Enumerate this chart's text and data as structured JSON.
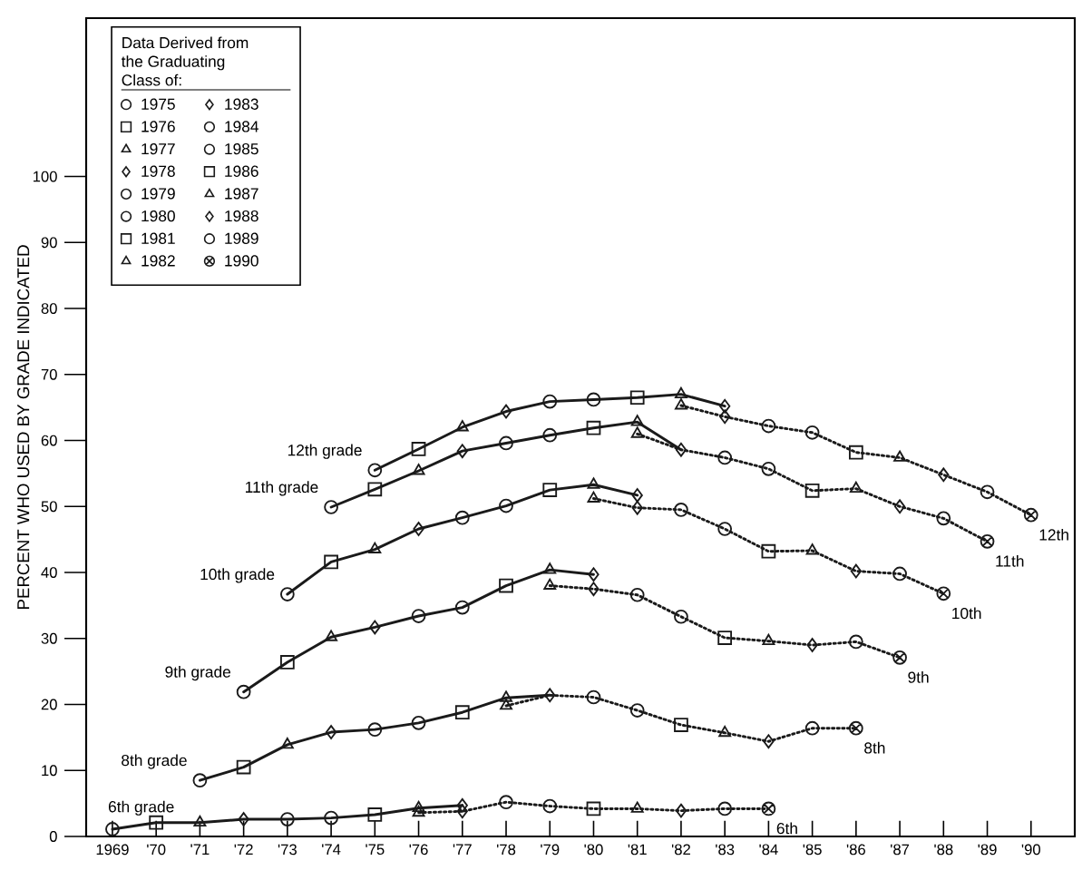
{
  "chart_data": {
    "type": "line",
    "ylabel": "PERCENT WHO USED BY GRADE INDICATED",
    "legend_title": "Data Derived from the Graduating Class of:",
    "legend": "top left",
    "xlim": [
      1968.4,
      1991
    ],
    "ylim": [
      0,
      124
    ],
    "xticks": [
      1969,
      {
        "value": 1970,
        "label": "'70"
      },
      {
        "value": 1971,
        "label": "'71"
      },
      {
        "value": 1972,
        "label": "'72"
      },
      {
        "value": 1973,
        "label": "'73"
      },
      {
        "value": 1974,
        "label": "'74"
      },
      {
        "value": 1975,
        "label": "'75"
      },
      {
        "value": 1976,
        "label": "'76"
      },
      {
        "value": 1977,
        "label": "'77"
      },
      {
        "value": 1978,
        "label": "'78"
      },
      {
        "value": 1979,
        "label": "'79"
      },
      {
        "value": 1980,
        "label": "'80"
      },
      {
        "value": 1981,
        "label": "'81"
      },
      {
        "value": 1982,
        "label": "'82"
      },
      {
        "value": 1983,
        "label": "'83"
      },
      {
        "value": 1984,
        "label": "'84"
      },
      {
        "value": 1985,
        "label": "'85"
      },
      {
        "value": 1986,
        "label": "'86"
      },
      {
        "value": 1987,
        "label": "'87"
      },
      {
        "value": 1988,
        "label": "'88"
      },
      {
        "value": 1989,
        "label": "'89"
      },
      {
        "value": 1990,
        "label": "'90"
      }
    ],
    "yticks": [
      0,
      10,
      20,
      30,
      40,
      50,
      60,
      70,
      80,
      90,
      100
    ],
    "annotations": [
      {
        "text": "12th grade",
        "x": 1975,
        "y": 55.5
      },
      {
        "text": "11th grade",
        "x": 1974,
        "y": 49.9
      },
      {
        "text": "10th grade",
        "x": 1973,
        "y": 36.7
      },
      {
        "text": "9th grade",
        "x": 1972,
        "y": 21.9
      },
      {
        "text": "8th grade",
        "x": 1971,
        "y": 8.5
      },
      {
        "text": "6th grade",
        "x": 1969,
        "y": 1.1
      },
      {
        "text": "12th",
        "x": 1990,
        "y": 48.7
      },
      {
        "text": "11th",
        "x": 1989,
        "y": 44.7
      },
      {
        "text": "10th",
        "x": 1988,
        "y": 36.8
      },
      {
        "text": "9th",
        "x": 1987,
        "y": 27.1
      },
      {
        "text": "8th",
        "x": 1986,
        "y": 16.4
      },
      {
        "text": "6th",
        "x": 1984,
        "y": 4.2
      }
    ],
    "series": [
      {
        "color": "#1a1a1a",
        "line_style": "solid",
        "marker": "none",
        "x": [
          1969,
          1970,
          1971,
          1972,
          1973,
          1974,
          1975,
          1976,
          1977
        ],
        "values": [
          1.1,
          2.1,
          2.1,
          2.6,
          2.6,
          2.8,
          3.3,
          4.3,
          4.7
        ]
      },
      {
        "color": "#1a1a1a",
        "line_style": "dotted",
        "marker": "none",
        "x": [
          1976,
          1977,
          1978,
          1979,
          1980,
          1981,
          1982,
          1983,
          1984
        ],
        "values": [
          3.6,
          3.8,
          5.2,
          4.6,
          4.2,
          4.2,
          3.9,
          4.2,
          4.2
        ]
      },
      {
        "color": "#1a1a1a",
        "line_style": "solid",
        "marker": "none",
        "x": [
          1971,
          1972,
          1973,
          1974,
          1975,
          1976,
          1977,
          1978,
          1979
        ],
        "values": [
          8.5,
          10.5,
          13.9,
          15.8,
          16.2,
          17.2,
          18.8,
          21.0,
          21.4
        ]
      },
      {
        "color": "#1a1a1a",
        "line_style": "dotted",
        "marker": "none",
        "x": [
          1978,
          1979,
          1980,
          1981,
          1982,
          1983,
          1984,
          1985,
          1986
        ],
        "values": [
          19.8,
          21.4,
          21.1,
          19.1,
          16.9,
          15.7,
          14.4,
          16.4,
          16.4
        ]
      },
      {
        "color": "#1a1a1a",
        "line_style": "solid",
        "marker": "none",
        "x": [
          1972,
          1973,
          1974,
          1975,
          1976,
          1977,
          1978,
          1979,
          1980
        ],
        "values": [
          21.9,
          26.4,
          30.2,
          31.7,
          33.4,
          34.7,
          38.0,
          40.4,
          39.7
        ]
      },
      {
        "color": "#1a1a1a",
        "line_style": "dotted",
        "marker": "none",
        "x": [
          1979,
          1980,
          1981,
          1982,
          1983,
          1984,
          1985,
          1986,
          1987
        ],
        "values": [
          38.0,
          37.5,
          36.6,
          33.3,
          30.1,
          29.6,
          29.0,
          29.5,
          27.1
        ]
      },
      {
        "color": "#1a1a1a",
        "line_style": "solid",
        "marker": "none",
        "x": [
          1973,
          1974,
          1975,
          1976,
          1977,
          1978,
          1979,
          1980,
          1981
        ],
        "values": [
          36.7,
          41.6,
          43.5,
          46.6,
          48.3,
          50.1,
          52.5,
          53.3,
          51.7
        ]
      },
      {
        "color": "#1a1a1a",
        "line_style": "dotted",
        "marker": "none",
        "x": [
          1980,
          1981,
          1982,
          1983,
          1984,
          1985,
          1986,
          1987,
          1988
        ],
        "values": [
          51.2,
          49.8,
          49.5,
          46.6,
          43.2,
          43.3,
          40.2,
          39.8,
          36.8
        ]
      },
      {
        "color": "#1a1a1a",
        "line_style": "solid",
        "marker": "none",
        "x": [
          1974,
          1975,
          1976,
          1977,
          1978,
          1979,
          1980,
          1981,
          1982
        ],
        "values": [
          49.9,
          52.6,
          55.4,
          58.4,
          59.6,
          60.8,
          61.9,
          62.8,
          58.6
        ]
      },
      {
        "color": "#1a1a1a",
        "line_style": "dotted",
        "marker": "none",
        "x": [
          1981,
          1982,
          1983,
          1984,
          1985,
          1986,
          1987,
          1988,
          1989
        ],
        "values": [
          61.0,
          58.6,
          57.4,
          55.7,
          52.4,
          52.7,
          50.0,
          48.2,
          44.7
        ]
      },
      {
        "color": "#1a1a1a",
        "line_style": "solid",
        "marker": "none",
        "x": [
          1975,
          1976,
          1977,
          1978,
          1979,
          1980,
          1981,
          1982,
          1983
        ],
        "values": [
          55.5,
          58.7,
          62.0,
          64.4,
          65.9,
          66.2,
          66.5,
          67.0,
          65.2
        ]
      },
      {
        "color": "#1a1a1a",
        "line_style": "dotted",
        "marker": "none",
        "x": [
          1982,
          1983,
          1984,
          1985,
          1986,
          1987,
          1988,
          1989,
          1990
        ],
        "values": [
          65.3,
          63.6,
          62.2,
          61.2,
          58.2,
          57.4,
          54.8,
          52.2,
          48.7
        ]
      },
      {
        "type": "scatter",
        "name": "1975",
        "color": "#1a1a1a",
        "marker": "circle",
        "x": [
          1969,
          1971,
          1972,
          1973,
          1974,
          1975
        ],
        "values": [
          1.1,
          8.5,
          21.9,
          36.7,
          49.9,
          55.5
        ]
      },
      {
        "type": "scatter",
        "name": "1976",
        "color": "#1a1a1a",
        "marker": "square",
        "x": [
          1970,
          1972,
          1973,
          1974,
          1975,
          1976
        ],
        "values": [
          2.1,
          10.5,
          26.4,
          41.6,
          52.6,
          58.7
        ]
      },
      {
        "type": "scatter",
        "name": "1977",
        "color": "#1a1a1a",
        "marker": "triangle",
        "x": [
          1971,
          1973,
          1974,
          1975,
          1976,
          1977
        ],
        "values": [
          2.1,
          13.9,
          30.2,
          43.5,
          55.4,
          62.0
        ]
      },
      {
        "type": "scatter",
        "name": "1978",
        "color": "#1a1a1a",
        "marker": "diamond",
        "x": [
          1972,
          1974,
          1975,
          1976,
          1977,
          1978
        ],
        "values": [
          2.6,
          15.8,
          31.7,
          46.6,
          58.4,
          64.4
        ]
      },
      {
        "type": "scatter",
        "name": "1979",
        "color": "#1a1a1a",
        "marker": "circle",
        "x": [
          1973,
          1975,
          1976,
          1977,
          1978,
          1979
        ],
        "values": [
          2.6,
          16.2,
          33.4,
          48.3,
          59.6,
          65.9
        ]
      },
      {
        "type": "scatter",
        "name": "1980",
        "color": "#1a1a1a",
        "marker": "circle",
        "x": [
          1974,
          1976,
          1977,
          1978,
          1979,
          1980
        ],
        "values": [
          2.8,
          17.2,
          34.7,
          50.1,
          60.8,
          66.2
        ]
      },
      {
        "type": "scatter",
        "name": "1981",
        "color": "#1a1a1a",
        "marker": "square",
        "x": [
          1975,
          1977,
          1978,
          1979,
          1980,
          1981
        ],
        "values": [
          3.3,
          18.8,
          38.0,
          52.5,
          61.9,
          66.5
        ]
      },
      {
        "type": "scatter",
        "name": "1982",
        "color": "#1a1a1a",
        "marker": "triangle",
        "x": [
          1976,
          1976,
          1978,
          1978,
          1979,
          1979,
          1980,
          1980,
          1981,
          1981,
          1982,
          1982
        ],
        "values": [
          4.3,
          3.6,
          21.0,
          19.8,
          40.4,
          38.0,
          53.3,
          51.2,
          62.8,
          61.0,
          67.0,
          65.3
        ]
      },
      {
        "type": "scatter",
        "name": "1983",
        "color": "#1a1a1a",
        "marker": "diamond",
        "x": [
          1977,
          1977,
          1979,
          1980,
          1980,
          1981,
          1981,
          1982,
          1983,
          1983
        ],
        "values": [
          4.7,
          3.8,
          21.4,
          39.7,
          37.5,
          51.7,
          49.8,
          58.6,
          65.2,
          63.6
        ]
      },
      {
        "type": "scatter",
        "name": "1984",
        "color": "#1a1a1a",
        "marker": "circle",
        "x": [
          1978,
          1980,
          1981,
          1982,
          1983,
          1984
        ],
        "values": [
          5.2,
          21.1,
          36.6,
          49.5,
          57.4,
          62.2
        ]
      },
      {
        "type": "scatter",
        "name": "1985",
        "color": "#1a1a1a",
        "marker": "circle",
        "x": [
          1979,
          1981,
          1982,
          1983,
          1984,
          1985
        ],
        "values": [
          4.6,
          19.1,
          33.3,
          46.6,
          55.7,
          61.2
        ]
      },
      {
        "type": "scatter",
        "name": "1986",
        "color": "#1a1a1a",
        "marker": "square",
        "x": [
          1980,
          1982,
          1983,
          1984,
          1985,
          1986
        ],
        "values": [
          4.2,
          16.9,
          30.1,
          43.2,
          52.4,
          58.2
        ]
      },
      {
        "type": "scatter",
        "name": "1987",
        "color": "#1a1a1a",
        "marker": "triangle",
        "x": [
          1981,
          1983,
          1984,
          1985,
          1986,
          1987
        ],
        "values": [
          4.2,
          15.7,
          29.6,
          43.3,
          52.7,
          57.4
        ]
      },
      {
        "type": "scatter",
        "name": "1988",
        "color": "#1a1a1a",
        "marker": "diamond",
        "x": [
          1982,
          1984,
          1985,
          1986,
          1987,
          1988
        ],
        "values": [
          3.9,
          14.4,
          29.0,
          40.2,
          50.0,
          54.8
        ]
      },
      {
        "type": "scatter",
        "name": "1989",
        "color": "#1a1a1a",
        "marker": "circle",
        "x": [
          1983,
          1985,
          1986,
          1987,
          1988,
          1989
        ],
        "values": [
          4.2,
          16.4,
          29.5,
          39.8,
          48.2,
          52.2
        ]
      },
      {
        "type": "scatter",
        "name": "1990",
        "color": "#1a1a1a",
        "marker": "cross",
        "x": [
          1984,
          1986,
          1987,
          1988,
          1989,
          1990
        ],
        "values": [
          4.2,
          16.4,
          27.1,
          36.8,
          44.7,
          48.7
        ]
      }
    ]
  }
}
